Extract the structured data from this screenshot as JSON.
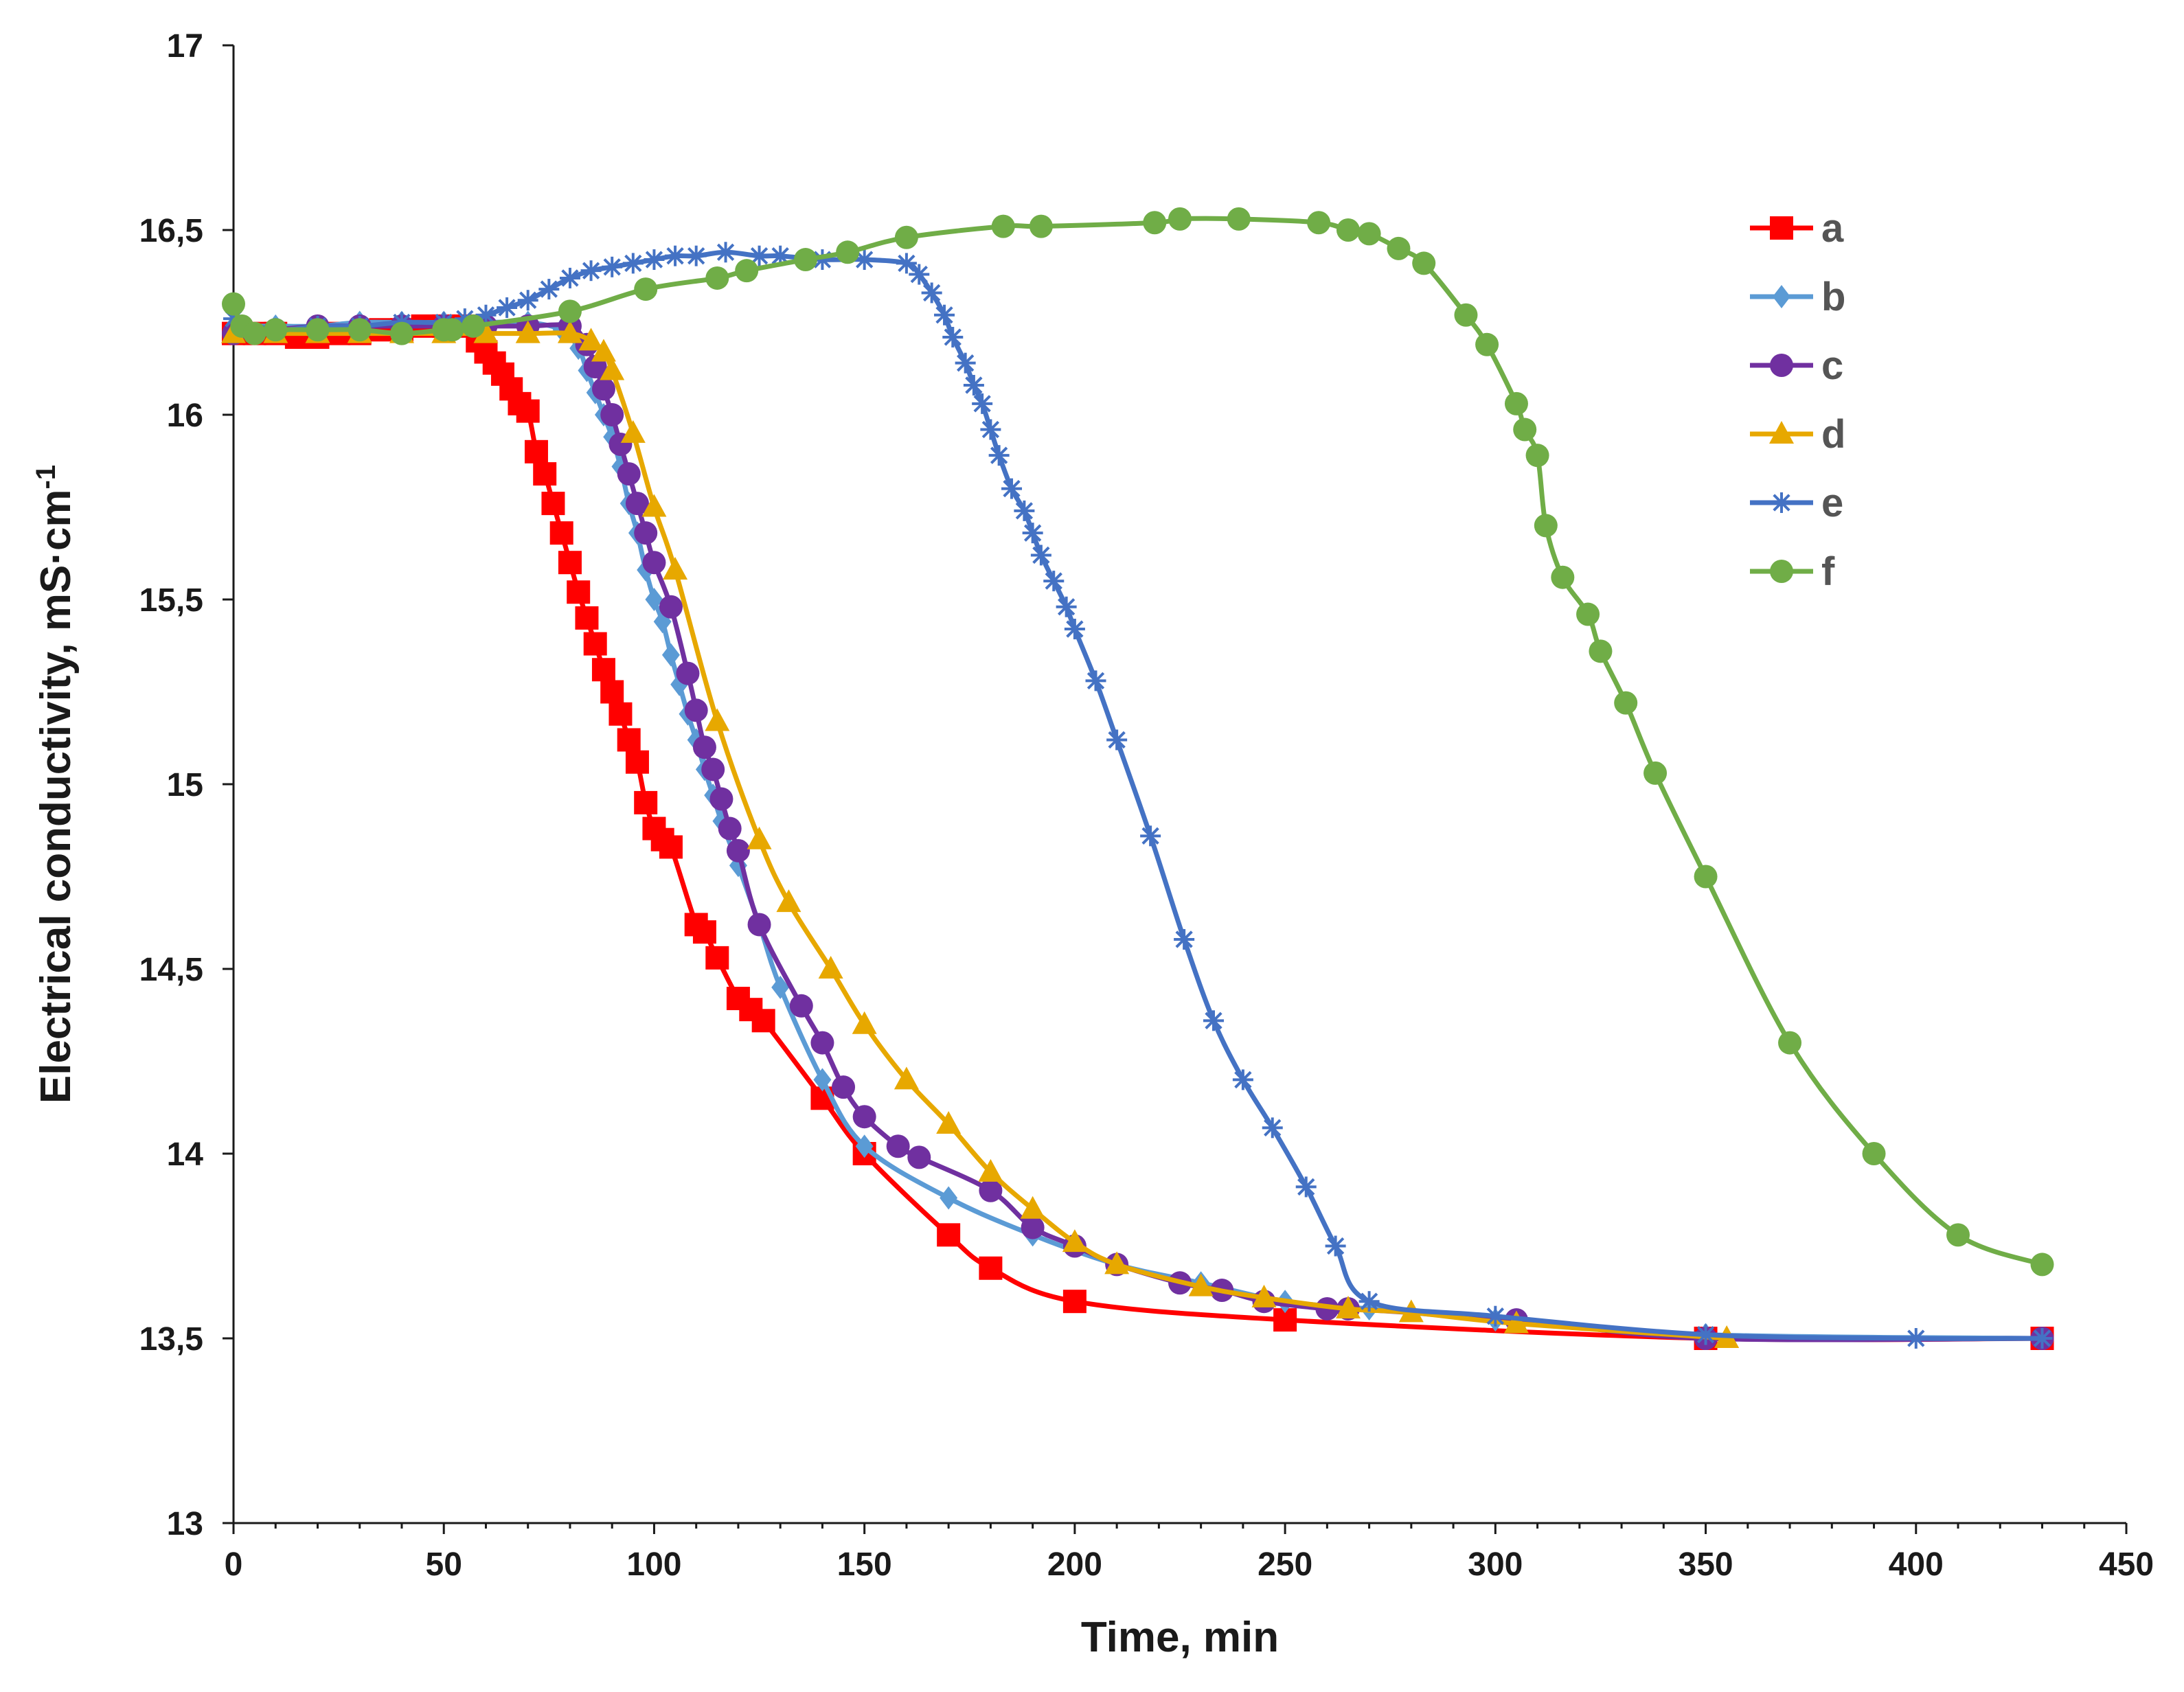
{
  "chart_data": {
    "type": "line",
    "title": "",
    "xlabel": "Time, min",
    "ylabel": "Electrical conductivity, mS·cm",
    "ylabel_superscript": "-1",
    "xlim": [
      0,
      450
    ],
    "ylim": [
      13,
      17
    ],
    "x_ticks": [
      0,
      50,
      100,
      150,
      200,
      250,
      300,
      350,
      400,
      450
    ],
    "x_tick_labels": [
      "0",
      "50",
      "100",
      "150",
      "200",
      "250",
      "300",
      "350",
      "400",
      "450"
    ],
    "y_ticks": [
      13,
      13.5,
      14,
      14.5,
      15,
      15.5,
      16,
      16.5,
      17
    ],
    "y_tick_labels": [
      "13",
      "13,5",
      "14",
      "14,5",
      "15",
      "15,5",
      "16",
      "16,5",
      "17"
    ],
    "grid": false,
    "legend_position": "top-right",
    "series": [
      {
        "name": "a",
        "color": "#ff0000",
        "marker": "square",
        "x": [
          0,
          5,
          10,
          15,
          20,
          25,
          30,
          35,
          40,
          45,
          50,
          55,
          58,
          60,
          62,
          64,
          66,
          68,
          70,
          72,
          74,
          76,
          78,
          80,
          82,
          84,
          86,
          88,
          90,
          92,
          94,
          96,
          98,
          100,
          102,
          104,
          110,
          112,
          115,
          120,
          123,
          126,
          140,
          150,
          170,
          180,
          200,
          250,
          350,
          430
        ],
        "y": [
          16.22,
          16.22,
          16.22,
          16.21,
          16.21,
          16.22,
          16.22,
          16.23,
          16.23,
          16.24,
          16.24,
          16.24,
          16.2,
          16.17,
          16.14,
          16.11,
          16.07,
          16.03,
          16.01,
          15.9,
          15.84,
          15.76,
          15.68,
          15.6,
          15.52,
          15.45,
          15.38,
          15.31,
          15.25,
          15.19,
          15.12,
          15.06,
          14.95,
          14.88,
          14.85,
          14.83,
          14.62,
          14.6,
          14.53,
          14.42,
          14.39,
          14.36,
          14.15,
          14.0,
          13.78,
          13.69,
          13.6,
          13.55,
          13.5,
          13.5
        ]
      },
      {
        "name": "b",
        "color": "#5b9bd5",
        "marker": "diamond",
        "x": [
          0,
          10,
          20,
          30,
          40,
          50,
          60,
          70,
          78,
          82,
          84,
          86,
          88,
          90,
          92,
          94,
          96,
          98,
          100,
          102,
          104,
          106,
          108,
          110,
          112,
          114,
          116,
          120,
          125,
          130,
          140,
          150,
          170,
          190,
          210,
          230,
          250,
          270,
          300,
          350,
          430
        ],
        "y": [
          16.24,
          16.24,
          16.24,
          16.25,
          16.25,
          16.25,
          16.25,
          16.25,
          16.23,
          16.18,
          16.12,
          16.06,
          16.0,
          15.94,
          15.86,
          15.76,
          15.68,
          15.58,
          15.5,
          15.44,
          15.35,
          15.27,
          15.19,
          15.12,
          15.04,
          14.97,
          14.9,
          14.78,
          14.62,
          14.45,
          14.2,
          14.02,
          13.88,
          13.78,
          13.7,
          13.65,
          13.6,
          13.58,
          13.55,
          13.51,
          13.5
        ]
      },
      {
        "name": "c",
        "color": "#7030a0",
        "marker": "circle",
        "x": [
          0,
          10,
          20,
          30,
          40,
          50,
          60,
          70,
          80,
          84,
          86,
          88,
          90,
          92,
          94,
          96,
          98,
          100,
          104,
          108,
          110,
          112,
          114,
          116,
          118,
          120,
          125,
          135,
          140,
          145,
          150,
          158,
          163,
          180,
          190,
          200,
          210,
          225,
          235,
          245,
          260,
          265,
          305,
          350,
          430
        ],
        "y": [
          16.22,
          16.23,
          16.24,
          16.24,
          16.24,
          16.24,
          16.24,
          16.24,
          16.24,
          16.19,
          16.13,
          16.07,
          16.0,
          15.92,
          15.84,
          15.76,
          15.68,
          15.6,
          15.48,
          15.3,
          15.2,
          15.1,
          15.04,
          14.96,
          14.88,
          14.82,
          14.62,
          14.4,
          14.3,
          14.18,
          14.1,
          14.02,
          13.99,
          13.9,
          13.8,
          13.75,
          13.7,
          13.65,
          13.63,
          13.6,
          13.58,
          13.58,
          13.55,
          13.5,
          13.5
        ]
      },
      {
        "name": "d",
        "color": "#e7a800",
        "marker": "triangle",
        "x": [
          0,
          10,
          20,
          30,
          40,
          50,
          60,
          70,
          80,
          85,
          88,
          90,
          95,
          100,
          105,
          115,
          125,
          132,
          142,
          150,
          160,
          170,
          180,
          190,
          200,
          210,
          230,
          245,
          265,
          280,
          305,
          355
        ],
        "y": [
          16.22,
          16.22,
          16.22,
          16.22,
          16.22,
          16.22,
          16.22,
          16.22,
          16.22,
          16.2,
          16.17,
          16.12,
          15.95,
          15.75,
          15.58,
          15.17,
          14.85,
          14.68,
          14.5,
          14.35,
          14.2,
          14.08,
          13.95,
          13.85,
          13.76,
          13.7,
          13.64,
          13.61,
          13.58,
          13.57,
          13.54,
          13.5
        ]
      },
      {
        "name": "e",
        "color": "#4472c4",
        "marker": "star",
        "x": [
          0,
          10,
          20,
          30,
          40,
          50,
          55,
          60,
          65,
          70,
          75,
          80,
          85,
          90,
          95,
          100,
          105,
          110,
          117,
          125,
          130,
          140,
          150,
          160,
          163,
          166,
          169,
          171,
          174,
          176,
          178,
          180,
          182,
          185,
          188,
          190,
          192,
          195,
          198,
          200,
          205,
          210,
          218,
          226,
          233,
          240,
          247,
          255,
          262,
          270,
          300,
          350,
          400,
          430
        ],
        "y": [
          16.26,
          16.23,
          16.24,
          16.24,
          16.25,
          16.25,
          16.26,
          16.27,
          16.29,
          16.31,
          16.34,
          16.37,
          16.39,
          16.4,
          16.41,
          16.42,
          16.43,
          16.43,
          16.44,
          16.43,
          16.43,
          16.42,
          16.42,
          16.41,
          16.38,
          16.33,
          16.27,
          16.21,
          16.14,
          16.08,
          16.03,
          15.96,
          15.89,
          15.8,
          15.74,
          15.68,
          15.62,
          15.55,
          15.48,
          15.42,
          15.28,
          15.12,
          14.86,
          14.58,
          14.36,
          14.2,
          14.07,
          13.91,
          13.75,
          13.6,
          13.56,
          13.51,
          13.5,
          13.5
        ]
      },
      {
        "name": "f",
        "color": "#70ad47",
        "marker": "circle",
        "x": [
          0,
          2,
          5,
          10,
          20,
          30,
          40,
          50,
          52,
          57,
          80,
          98,
          115,
          122,
          136,
          146,
          160,
          183,
          192,
          219,
          225,
          239,
          258,
          265,
          270,
          277,
          283,
          293,
          298,
          305,
          307,
          310,
          312,
          316,
          322,
          325,
          331,
          338,
          350,
          370,
          390,
          410,
          430
        ],
        "y": [
          16.3,
          16.24,
          16.22,
          16.23,
          16.23,
          16.23,
          16.22,
          16.23,
          16.23,
          16.24,
          16.28,
          16.34,
          16.37,
          16.39,
          16.42,
          16.44,
          16.48,
          16.51,
          16.51,
          16.52,
          16.53,
          16.53,
          16.52,
          16.5,
          16.49,
          16.45,
          16.41,
          16.27,
          16.19,
          16.03,
          15.96,
          15.89,
          15.7,
          15.56,
          15.46,
          15.36,
          15.22,
          15.03,
          14.75,
          14.3,
          14.0,
          13.78,
          13.7
        ]
      }
    ]
  }
}
